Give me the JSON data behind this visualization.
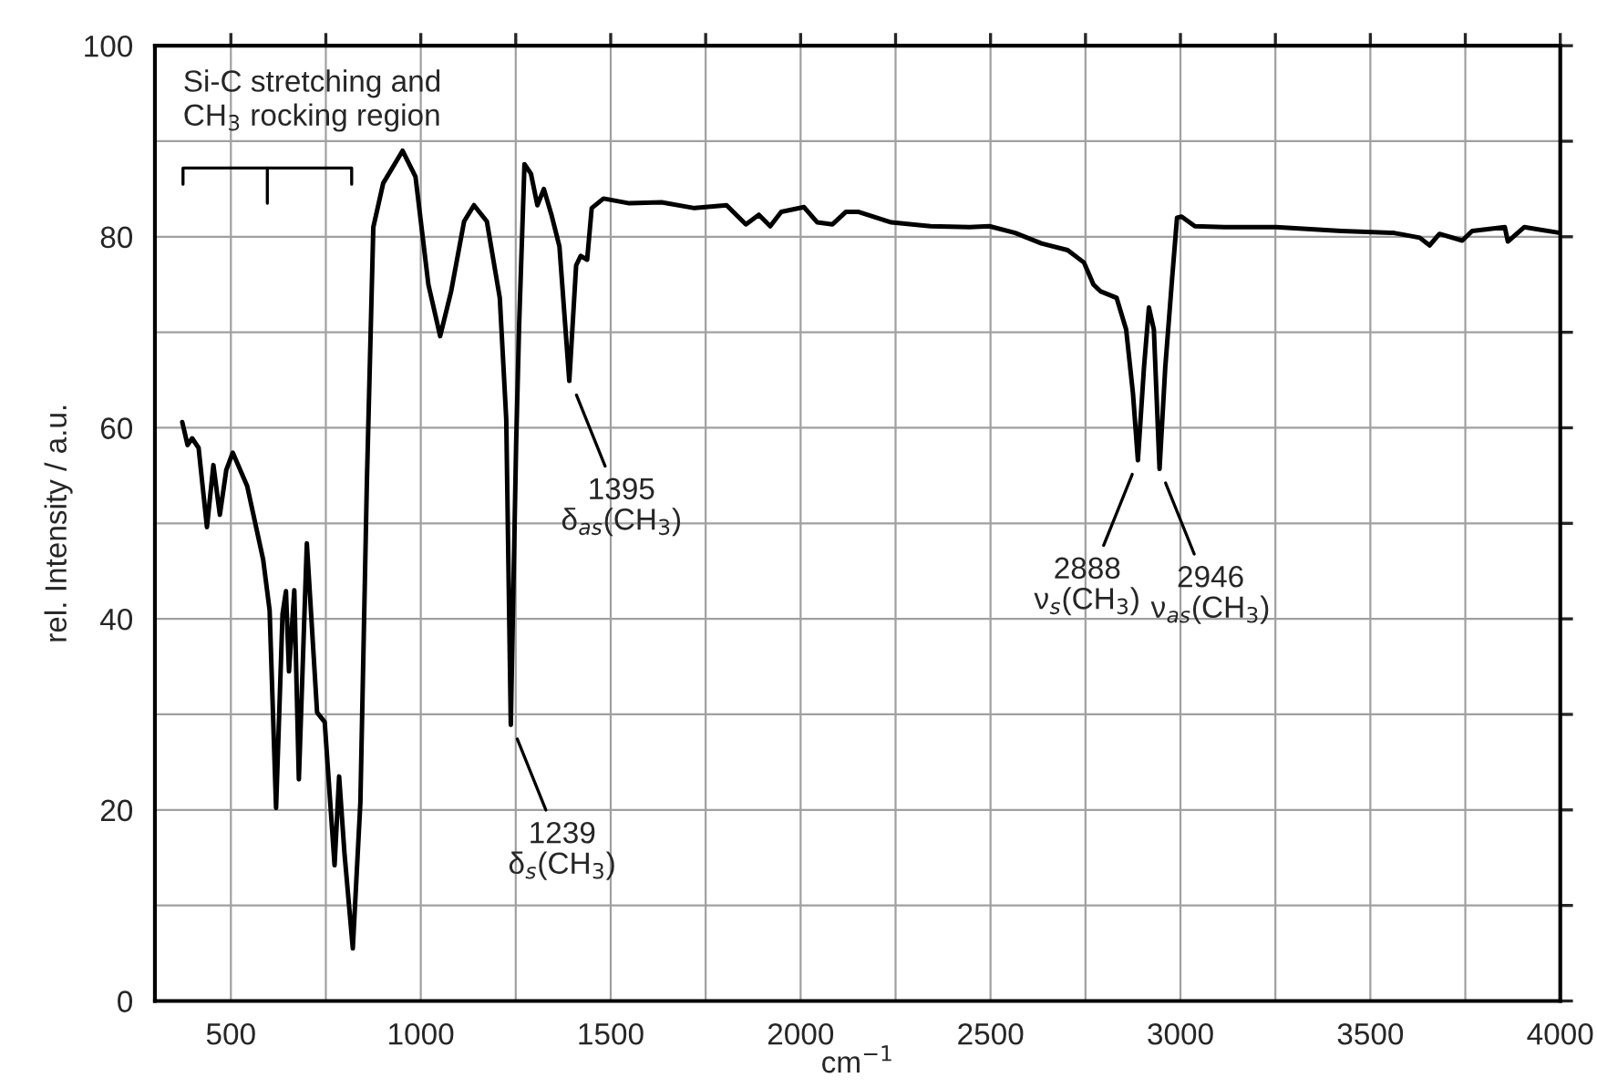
{
  "chart_data": {
    "type": "line",
    "xlabel": "cm$^{−1}$",
    "ylabel": "rel. Intensity / a.u.",
    "x": [
      372,
      386,
      398,
      415,
      437,
      454,
      471,
      488,
      505,
      543,
      585,
      602,
      619,
      636,
      645,
      653,
      667,
      679,
      700,
      727,
      747,
      773,
      785,
      799,
      821,
      841,
      858,
      875,
      901,
      952,
      986,
      1020,
      1051,
      1080,
      1114,
      1140,
      1174,
      1208,
      1225,
      1237,
      1251,
      1259,
      1273,
      1290,
      1307,
      1324,
      1344,
      1365,
      1391,
      1409,
      1421,
      1438,
      1450,
      1481,
      1549,
      1634,
      1720,
      1805,
      1856,
      1890,
      1920,
      1949,
      2009,
      2044,
      2084,
      2119,
      2153,
      2239,
      2342,
      2445,
      2497,
      2565,
      2634,
      2703,
      2746,
      2771,
      2789,
      2832,
      2857,
      2875,
      2888,
      2904,
      2917,
      2930,
      2945,
      2960,
      2978,
      2991,
      3003,
      3038,
      3115,
      3252,
      3424,
      3562,
      3630,
      3656,
      3682,
      3742,
      3768,
      3854,
      3862,
      3905,
      4000
    ],
    "series": [
      {
        "color": "#000000",
        "values": [
          60.6,
          58.2,
          58.9,
          57.9,
          49.6,
          56.1,
          50.9,
          55.6,
          57.4,
          53.9,
          46.2,
          40.9,
          20.2,
          40.5,
          42.9,
          34.5,
          43.0,
          23.2,
          47.9,
          30.2,
          29.2,
          14.2,
          23.5,
          15.5,
          5.5,
          20.8,
          54.2,
          81.0,
          85.6,
          89.0,
          86.3,
          75.0,
          69.6,
          74.3,
          81.6,
          83.3,
          81.6,
          73.6,
          60.9,
          28.9,
          58.2,
          70.9,
          87.6,
          86.6,
          83.3,
          85.0,
          82.3,
          79.0,
          64.9,
          77.0,
          78.0,
          77.6,
          83.0,
          84.0,
          83.5,
          83.6,
          83.0,
          83.3,
          81.3,
          82.3,
          81.1,
          82.6,
          83.1,
          81.5,
          81.3,
          82.6,
          82.6,
          81.5,
          81.1,
          81.0,
          81.1,
          80.4,
          79.3,
          78.6,
          77.3,
          75.0,
          74.3,
          73.6,
          70.3,
          63.6,
          56.6,
          66.3,
          72.6,
          70.3,
          55.7,
          66.3,
          75.6,
          82.0,
          82.1,
          81.1,
          81.0,
          81.0,
          80.6,
          80.4,
          79.9,
          79.1,
          80.3,
          79.6,
          80.6,
          81.0,
          79.5,
          81.0,
          80.4
        ]
      }
    ],
    "xlim": [
      300,
      4000
    ],
    "xticks": [
      {
        "value": 500,
        "label": "500"
      },
      {
        "value": 750,
        "label": null
      },
      1000,
      {
        "value": 1250,
        "label": null
      },
      1500,
      {
        "value": 1750,
        "label": null
      },
      2000,
      {
        "value": 2250,
        "label": null
      },
      2500,
      {
        "value": 2750,
        "label": null
      },
      3000,
      {
        "value": 3250,
        "label": null
      },
      3500,
      {
        "value": 3750,
        "label": null
      },
      4000
    ],
    "ylim": [
      0,
      100
    ],
    "yticks": [
      0,
      {
        "value": 10,
        "label": null
      },
      20,
      {
        "value": 30,
        "label": null
      },
      40,
      {
        "value": 50,
        "label": null
      },
      60,
      {
        "value": 70,
        "label": null
      },
      80,
      {
        "value": 90,
        "label": null
      },
      100
    ],
    "grid": true,
    "legend": false,
    "marker": "none",
    "line_style": "solid",
    "annotations": [
      "Si-C stretching and\nCH$_{3}$ rocking region",
      {
        "text": "1239\nδ$_{s}$(CH$_{3}$)",
        "x": 1239,
        "y": 28.9
      },
      {
        "text": "1395\nδ$_{as}$(CH$_{3}$)",
        "x": 1395,
        "y": 64.9
      },
      {
        "text": "2888\nν$_{s}$(CH$_{3}$)",
        "x": 2888,
        "y": 56.6
      },
      {
        "text": "2946\nν$_{as}$(CH$_{3}$)",
        "x": 2946,
        "y": 55.7
      }
    ]
  }
}
